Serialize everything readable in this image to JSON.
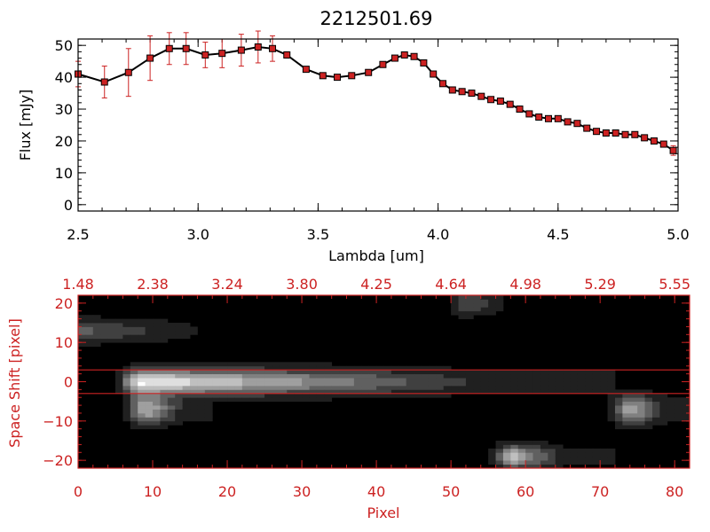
{
  "chart_data": [
    {
      "type": "line",
      "title": "2212501.69",
      "xlabel": "Lambda [um]",
      "ylabel": "Flux [mJy]",
      "xlim": [
        2.5,
        5.0
      ],
      "ylim": [
        -2,
        52
      ],
      "xticks": [
        2.5,
        3.0,
        3.5,
        4.0,
        4.5,
        5.0
      ],
      "xtick_labels": [
        "2.5",
        "3.0",
        "3.5",
        "4.0",
        "4.5",
        "5.0"
      ],
      "yticks": [
        0,
        10,
        20,
        30,
        40,
        50
      ],
      "ytick_labels": [
        "0",
        "10",
        "20",
        "30",
        "40",
        "50"
      ],
      "grid": false,
      "line_color": "#000000",
      "marker_color": "#cc2222",
      "errorbar_color": "#cc2222",
      "series": [
        {
          "x": [
            2.5,
            2.61,
            2.71,
            2.8,
            2.88,
            2.95,
            3.03,
            3.1,
            3.18,
            3.25,
            3.31,
            3.37,
            3.45,
            3.52,
            3.58,
            3.64,
            3.71,
            3.77,
            3.82,
            3.86,
            3.9,
            3.94,
            3.98,
            4.02,
            4.06,
            4.1,
            4.14,
            4.18,
            4.22,
            4.26,
            4.3,
            4.34,
            4.38,
            4.42,
            4.46,
            4.5,
            4.54,
            4.58,
            4.62,
            4.66,
            4.7,
            4.74,
            4.78,
            4.82,
            4.86,
            4.9,
            4.94,
            4.98
          ],
          "y": [
            41,
            38.5,
            41.5,
            46,
            49,
            49,
            47,
            47.5,
            48.5,
            49.5,
            49,
            47,
            42.5,
            40.5,
            40,
            40.5,
            41.5,
            44,
            46,
            47,
            46.5,
            44.5,
            41,
            38,
            36,
            35.5,
            35,
            34,
            33,
            32.5,
            31.5,
            30,
            28.5,
            27.5,
            27,
            27,
            26,
            25.5,
            24,
            23,
            22.5,
            22.5,
            22,
            22,
            21,
            20,
            19,
            17
          ],
          "yerr": [
            4,
            5,
            7.5,
            7,
            5,
            5,
            4,
            4.5,
            5,
            5,
            4,
            1,
            0.5,
            0.5,
            0.5,
            0.5,
            0.5,
            0.5,
            0.5,
            0.5,
            0.5,
            0.5,
            0.5,
            0.5,
            0.5,
            0.5,
            0.5,
            0.5,
            0.5,
            0.5,
            0.5,
            0.5,
            0.5,
            0.5,
            0.5,
            0.5,
            0.5,
            0.5,
            0.5,
            0.5,
            0.5,
            0.5,
            0.5,
            0.5,
            0.5,
            0.5,
            0.5,
            1.5
          ]
        }
      ]
    },
    {
      "type": "heatmap",
      "xlabel": "Pixel",
      "ylabel": "Space Shift [pixel]",
      "xlim": [
        0,
        82
      ],
      "ylim": [
        -22,
        22
      ],
      "xticks": [
        0,
        10,
        20,
        30,
        40,
        50,
        60,
        70,
        80
      ],
      "xtick_labels": [
        "0",
        "10",
        "20",
        "30",
        "40",
        "50",
        "60",
        "70",
        "80"
      ],
      "top_ticks": [
        0,
        10,
        20,
        30,
        40,
        50,
        60,
        70,
        80
      ],
      "top_tick_labels": [
        "1.48",
        "2.38",
        "3.24",
        "3.80",
        "4.25",
        "4.64",
        "4.98",
        "5.29",
        "5.55"
      ],
      "yticks": [
        -20,
        -10,
        0,
        10,
        20
      ],
      "ytick_labels": [
        "−20",
        "−10",
        "0",
        "10",
        "20"
      ],
      "aperture_lines": [
        3,
        -3
      ],
      "colormap": "grayscale",
      "axis_color": "#cc2222",
      "sources": [
        {
          "x0": 8,
          "x1": 72,
          "y": 0,
          "sigma": 2.2,
          "peak": 0.95,
          "falloff": 55
        },
        {
          "x0": 9,
          "x1": 18,
          "y": -7,
          "sigma": 2.5,
          "peak": 0.75,
          "falloff": 6
        },
        {
          "x0": 74,
          "x1": 82,
          "y": -7,
          "sigma": 2.5,
          "peak": 0.7,
          "falloff": 6
        },
        {
          "x0": 58,
          "x1": 72,
          "y": -19,
          "sigma": 2,
          "peak": 0.8,
          "falloff": 8
        },
        {
          "x0": 0,
          "x1": 20,
          "y": 13,
          "sigma": 2,
          "peak": 0.35,
          "falloff": 20
        },
        {
          "x0": 52,
          "x1": 60,
          "y": 20,
          "sigma": 2,
          "peak": 0.35,
          "falloff": 6
        }
      ]
    }
  ]
}
